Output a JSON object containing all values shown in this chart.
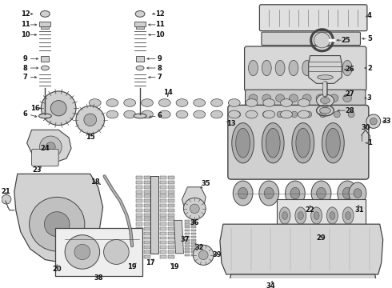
{
  "bg_color": "#ffffff",
  "line_color": "#444444",
  "text_color": "#111111",
  "fig_width": 4.9,
  "fig_height": 3.6,
  "dpi": 100
}
